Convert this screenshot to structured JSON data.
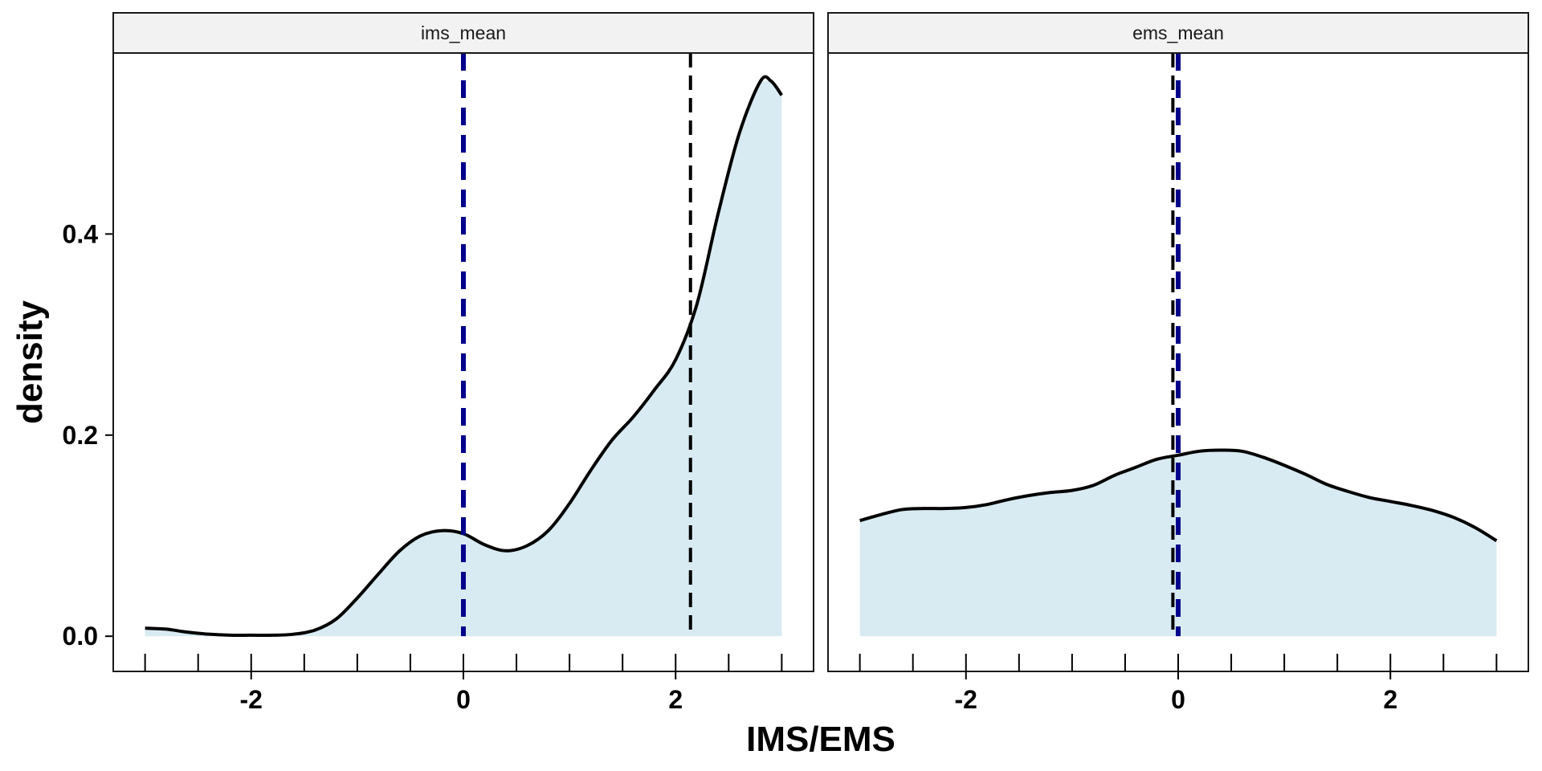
{
  "chart_data": {
    "type": "area",
    "subtype": "faceted-density",
    "xlabel": "IMS/EMS",
    "ylabel": "density",
    "xlim": [
      -3.3,
      3.3
    ],
    "ylim": [
      -0.035,
      0.58
    ],
    "x_ticks": [
      -3,
      -2.5,
      -2,
      -1.5,
      -1,
      -0.5,
      0,
      0.5,
      1,
      1.5,
      2,
      2.5,
      3
    ],
    "x_tick_labels": [
      {
        "value": -2,
        "label": "-2"
      },
      {
        "value": 0,
        "label": "0"
      },
      {
        "value": 2,
        "label": "2"
      }
    ],
    "y_tick_labels": [
      {
        "value": 0.0,
        "label": "0.0"
      },
      {
        "value": 0.2,
        "label": "0.2"
      },
      {
        "value": 0.4,
        "label": "0.4"
      }
    ],
    "fill_color": "#d8ebf2",
    "line_color": "#000000",
    "mean_line_color": "#000000",
    "zero_line_color": "#00008b",
    "strip_color": "#f2f2f2",
    "facets": [
      {
        "name": "ims_mean",
        "mean": 2.14,
        "reference": 0,
        "x": [
          -3.0,
          -2.8,
          -2.6,
          -2.4,
          -2.2,
          -2.0,
          -1.8,
          -1.6,
          -1.4,
          -1.2,
          -1.0,
          -0.8,
          -0.6,
          -0.4,
          -0.2,
          0.0,
          0.2,
          0.4,
          0.6,
          0.8,
          1.0,
          1.2,
          1.4,
          1.6,
          1.8,
          2.0,
          2.2,
          2.4,
          2.6,
          2.8,
          2.9,
          3.0
        ],
        "y": [
          0.008,
          0.007,
          0.004,
          0.002,
          0.001,
          0.001,
          0.001,
          0.002,
          0.006,
          0.017,
          0.038,
          0.062,
          0.085,
          0.1,
          0.105,
          0.102,
          0.091,
          0.085,
          0.09,
          0.105,
          0.132,
          0.165,
          0.195,
          0.218,
          0.245,
          0.275,
          0.33,
          0.42,
          0.5,
          0.552,
          0.552,
          0.538
        ]
      },
      {
        "name": "ems_mean",
        "mean": -0.05,
        "reference": 0,
        "x": [
          -3.0,
          -2.8,
          -2.6,
          -2.4,
          -2.2,
          -2.0,
          -1.8,
          -1.6,
          -1.4,
          -1.2,
          -1.0,
          -0.8,
          -0.6,
          -0.4,
          -0.2,
          0.0,
          0.2,
          0.4,
          0.6,
          0.8,
          1.0,
          1.2,
          1.4,
          1.6,
          1.8,
          2.0,
          2.2,
          2.4,
          2.6,
          2.8,
          3.0
        ],
        "y": [
          0.115,
          0.121,
          0.126,
          0.127,
          0.127,
          0.128,
          0.131,
          0.136,
          0.14,
          0.143,
          0.145,
          0.15,
          0.16,
          0.168,
          0.176,
          0.18,
          0.184,
          0.185,
          0.184,
          0.178,
          0.17,
          0.161,
          0.151,
          0.144,
          0.138,
          0.134,
          0.13,
          0.125,
          0.118,
          0.108,
          0.095
        ]
      }
    ]
  }
}
